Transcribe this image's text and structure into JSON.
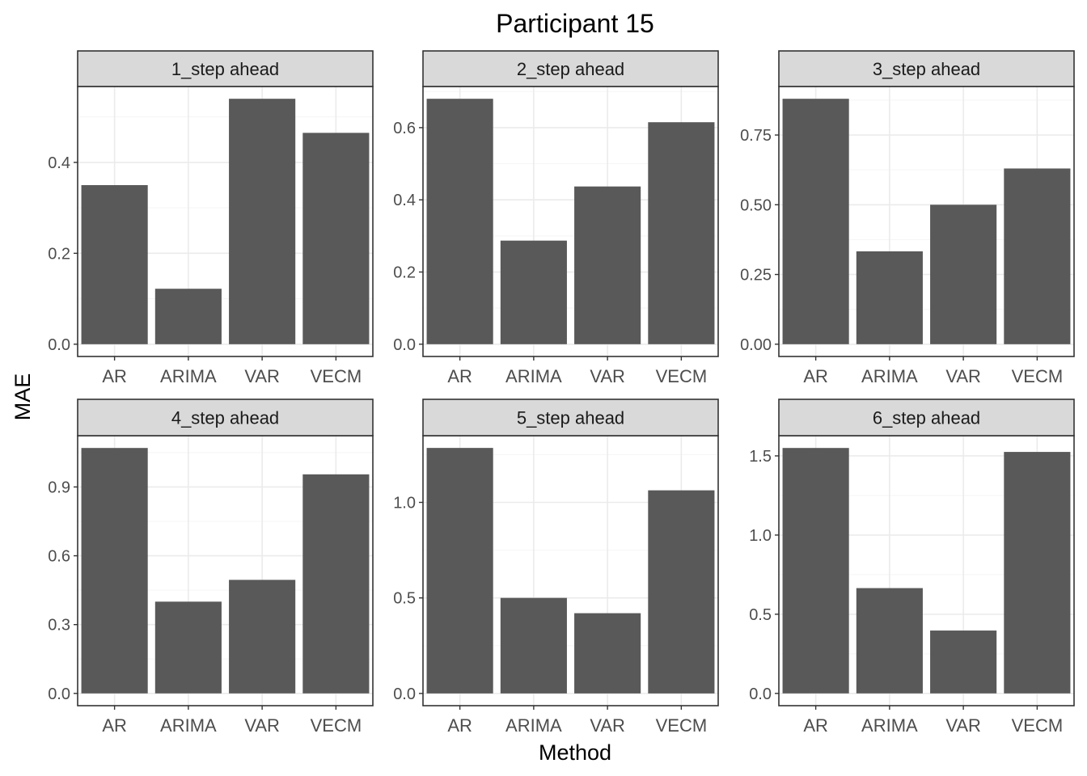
{
  "chart_title": "Participant 15",
  "xlabel": "Method",
  "ylabel": "MAE",
  "colors": {
    "bar": "#595959",
    "strip_fill": "#d9d9d9",
    "panel_border": "#333333",
    "grid_major": "#ebebeb",
    "grid_minor": "#f5f5f5",
    "tick_label": "#4d4d4d",
    "text": "#000000"
  },
  "chart_data": [
    {
      "type": "bar",
      "title": "1_step ahead",
      "categories": [
        "AR",
        "ARIMA",
        "VAR",
        "VECM"
      ],
      "values": [
        0.35,
        0.122,
        0.54,
        0.465
      ],
      "ylim": [
        -0.027,
        0.567
      ],
      "yticks": [
        0.0,
        0.2,
        0.4
      ],
      "ytick_labels": [
        "0.0",
        "0.2",
        "0.4"
      ],
      "grid": true
    },
    {
      "type": "bar",
      "title": "2_step ahead",
      "categories": [
        "AR",
        "ARIMA",
        "VAR",
        "VECM"
      ],
      "values": [
        0.68,
        0.287,
        0.437,
        0.615
      ],
      "ylim": [
        -0.034,
        0.714
      ],
      "yticks": [
        0.0,
        0.2,
        0.4,
        0.6
      ],
      "ytick_labels": [
        "0.0",
        "0.2",
        "0.4",
        "0.6"
      ],
      "grid": true
    },
    {
      "type": "bar",
      "title": "3_step ahead",
      "categories": [
        "AR",
        "ARIMA",
        "VAR",
        "VECM"
      ],
      "values": [
        0.88,
        0.333,
        0.5,
        0.63
      ],
      "ylim": [
        -0.044,
        0.924
      ],
      "yticks": [
        0.0,
        0.25,
        0.5,
        0.75
      ],
      "ytick_labels": [
        "0.00",
        "0.25",
        "0.50",
        "0.75"
      ],
      "grid": true
    },
    {
      "type": "bar",
      "title": "4_step ahead",
      "categories": [
        "AR",
        "ARIMA",
        "VAR",
        "VECM"
      ],
      "values": [
        1.07,
        0.4,
        0.495,
        0.955
      ],
      "ylim": [
        -0.0535,
        1.1235
      ],
      "yticks": [
        0.0,
        0.3,
        0.6,
        0.9
      ],
      "ytick_labels": [
        "0.0",
        "0.3",
        "0.6",
        "0.9"
      ],
      "grid": true
    },
    {
      "type": "bar",
      "title": "5_step ahead",
      "categories": [
        "AR",
        "ARIMA",
        "VAR",
        "VECM"
      ],
      "values": [
        1.285,
        0.5,
        0.42,
        1.063
      ],
      "ylim": [
        -0.064,
        1.349
      ],
      "yticks": [
        0.0,
        0.5,
        1.0
      ],
      "ytick_labels": [
        "0.0",
        "0.5",
        "1.0"
      ],
      "grid": true
    },
    {
      "type": "bar",
      "title": "6_step ahead",
      "categories": [
        "AR",
        "ARIMA",
        "VAR",
        "VECM"
      ],
      "values": [
        1.55,
        0.665,
        0.397,
        1.525
      ],
      "ylim": [
        -0.0775,
        1.6275
      ],
      "yticks": [
        0.0,
        0.5,
        1.0,
        1.5
      ],
      "ytick_labels": [
        "0.0",
        "0.5",
        "1.0",
        "1.5"
      ],
      "grid": true
    }
  ]
}
